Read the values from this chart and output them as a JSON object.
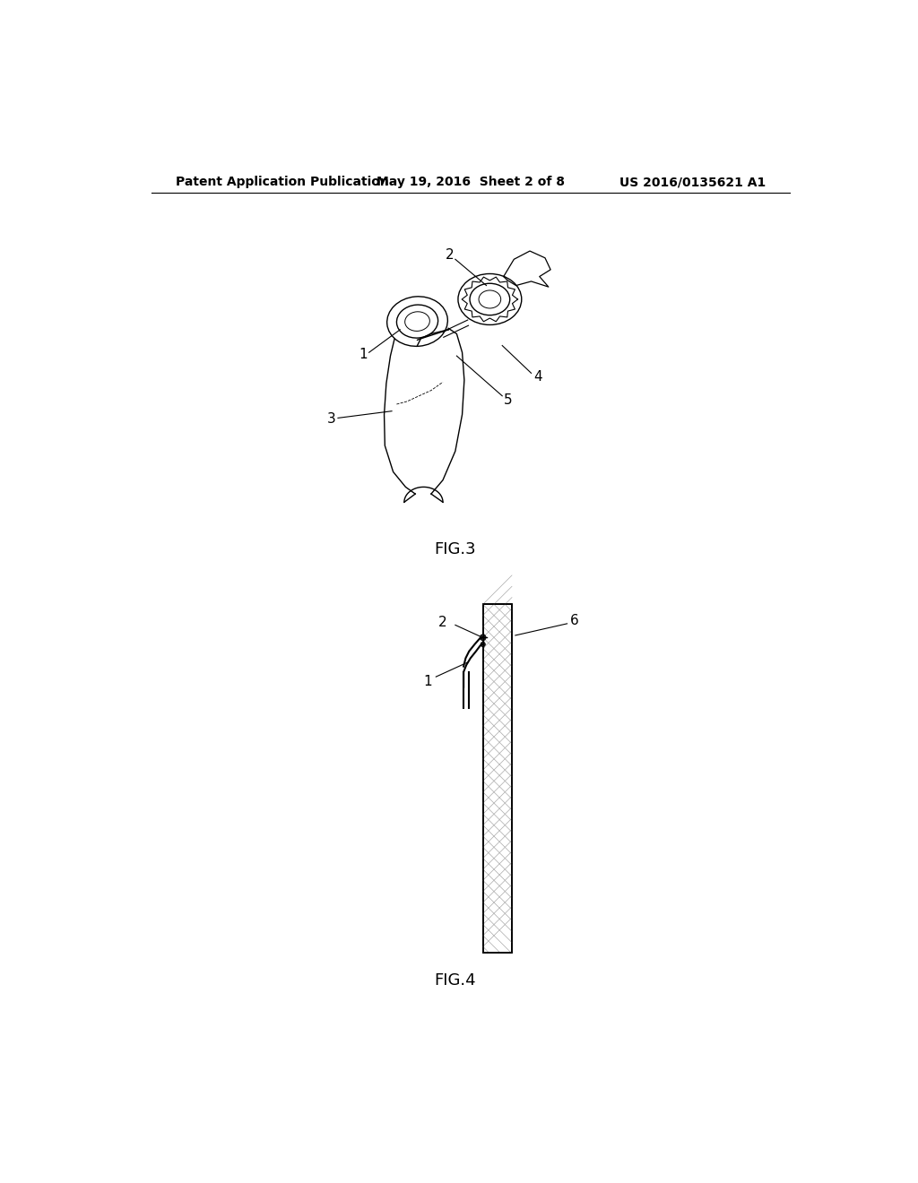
{
  "background_color": "#ffffff",
  "header_left": "Patent Application Publication",
  "header_center": "May 19, 2016  Sheet 2 of 8",
  "header_right": "US 2016/0135621 A1",
  "fig3_label": "FIG.3",
  "fig4_label": "FIG.4",
  "header_font_size": 10,
  "label_font_size": 13,
  "annotation_font_size": 11,
  "line_color": "#000000",
  "gray_light": "#cccccc",
  "gray_hatch": "#999999"
}
